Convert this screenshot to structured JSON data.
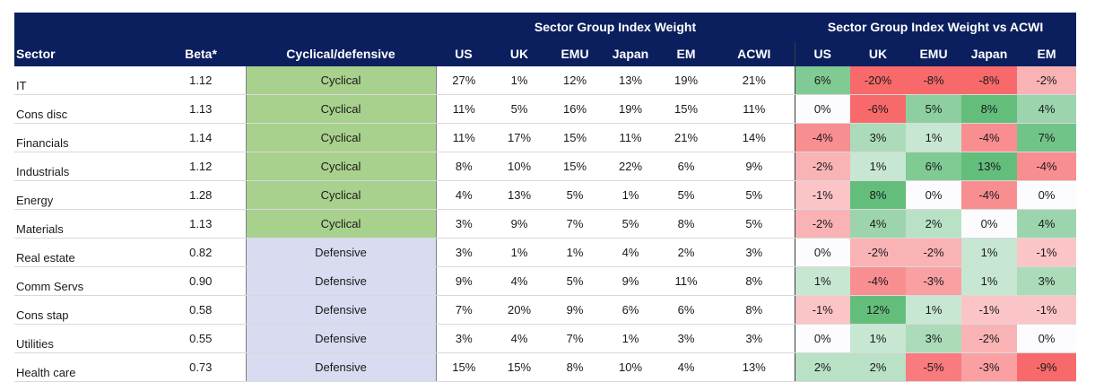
{
  "headers": {
    "group_weight": "Sector Group Index Weight",
    "group_diff": "Sector Group Index Weight vs ACWI",
    "sector": "Sector",
    "beta": "Beta*",
    "type": "Cyclical/defensive",
    "weight_cols": [
      "US",
      "UK",
      "EMU",
      "Japan",
      "EM",
      "ACWI"
    ],
    "diff_cols": [
      "US",
      "UK",
      "EMU",
      "Japan",
      "EM"
    ]
  },
  "colors": {
    "header_bg": "#0b1f5e",
    "cyclical_bg": "#a9d18e",
    "defensive_bg": "#d9dcf0",
    "positive": "#63be7b",
    "negative": "#f8696b",
    "neutral": "#fcfcff"
  },
  "chart_data": {
    "type": "table",
    "columns": [
      "Sector",
      "Beta*",
      "Cyclical/defensive",
      "US",
      "UK",
      "EMU",
      "Japan",
      "EM",
      "ACWI",
      "US",
      "UK",
      "EMU",
      "Japan",
      "EM"
    ],
    "rows": [
      {
        "sector": "IT",
        "beta": "1.12",
        "type": "Cyclical",
        "weights": [
          "27%",
          "1%",
          "12%",
          "13%",
          "19%",
          "21%"
        ],
        "diffs": [
          "6%",
          "-20%",
          "-8%",
          "-8%",
          "-2%"
        ]
      },
      {
        "sector": "Cons disc",
        "beta": "1.13",
        "type": "Cyclical",
        "weights": [
          "11%",
          "5%",
          "16%",
          "19%",
          "15%",
          "11%"
        ],
        "diffs": [
          "0%",
          "-6%",
          "5%",
          "8%",
          "4%"
        ]
      },
      {
        "sector": "Financials",
        "beta": "1.14",
        "type": "Cyclical",
        "weights": [
          "11%",
          "17%",
          "15%",
          "11%",
          "21%",
          "14%"
        ],
        "diffs": [
          "-4%",
          "3%",
          "1%",
          "-4%",
          "7%"
        ]
      },
      {
        "sector": "Industrials",
        "beta": "1.12",
        "type": "Cyclical",
        "weights": [
          "8%",
          "10%",
          "15%",
          "22%",
          "6%",
          "9%"
        ],
        "diffs": [
          "-2%",
          "1%",
          "6%",
          "13%",
          "-4%"
        ]
      },
      {
        "sector": "Energy",
        "beta": "1.28",
        "type": "Cyclical",
        "weights": [
          "4%",
          "13%",
          "5%",
          "1%",
          "5%",
          "5%"
        ],
        "diffs": [
          "-1%",
          "8%",
          "0%",
          "-4%",
          "0%"
        ]
      },
      {
        "sector": "Materials",
        "beta": "1.13",
        "type": "Cyclical",
        "weights": [
          "3%",
          "9%",
          "7%",
          "5%",
          "8%",
          "5%"
        ],
        "diffs": [
          "-2%",
          "4%",
          "2%",
          "0%",
          "4%"
        ]
      },
      {
        "sector": "Real estate",
        "beta": "0.82",
        "type": "Defensive",
        "weights": [
          "3%",
          "1%",
          "1%",
          "4%",
          "2%",
          "3%"
        ],
        "diffs": [
          "0%",
          "-2%",
          "-2%",
          "1%",
          "-1%"
        ]
      },
      {
        "sector": "Comm Servs",
        "beta": "0.90",
        "type": "Defensive",
        "weights": [
          "9%",
          "4%",
          "5%",
          "9%",
          "11%",
          "8%"
        ],
        "diffs": [
          "1%",
          "-4%",
          "-3%",
          "1%",
          "3%"
        ]
      },
      {
        "sector": "Cons stap",
        "beta": "0.58",
        "type": "Defensive",
        "weights": [
          "7%",
          "20%",
          "9%",
          "6%",
          "6%",
          "8%"
        ],
        "diffs": [
          "-1%",
          "12%",
          "1%",
          "-1%",
          "-1%"
        ]
      },
      {
        "sector": "Utilities",
        "beta": "0.55",
        "type": "Defensive",
        "weights": [
          "3%",
          "4%",
          "7%",
          "1%",
          "3%",
          "3%"
        ],
        "diffs": [
          "0%",
          "1%",
          "3%",
          "-2%",
          "0%"
        ]
      },
      {
        "sector": "Health care",
        "beta": "0.73",
        "type": "Defensive",
        "weights": [
          "15%",
          "15%",
          "8%",
          "10%",
          "4%",
          "13%"
        ],
        "diffs": [
          "2%",
          "2%",
          "-5%",
          "-3%",
          "-9%"
        ]
      }
    ]
  }
}
